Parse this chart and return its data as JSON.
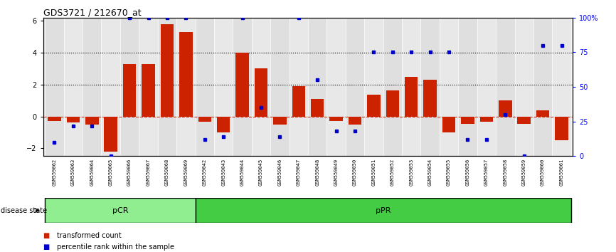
{
  "title": "GDS3721 / 212670_at",
  "samples": [
    "GSM559062",
    "GSM559063",
    "GSM559064",
    "GSM559065",
    "GSM559066",
    "GSM559067",
    "GSM559068",
    "GSM559069",
    "GSM559042",
    "GSM559043",
    "GSM559044",
    "GSM559045",
    "GSM559046",
    "GSM559047",
    "GSM559048",
    "GSM559049",
    "GSM559050",
    "GSM559051",
    "GSM559052",
    "GSM559053",
    "GSM559054",
    "GSM559055",
    "GSM559056",
    "GSM559057",
    "GSM559058",
    "GSM559059",
    "GSM559060",
    "GSM559061"
  ],
  "transformed_count": [
    -0.3,
    -0.4,
    -0.5,
    -2.2,
    3.3,
    3.3,
    5.8,
    5.3,
    -0.35,
    -1.0,
    4.0,
    3.0,
    -0.5,
    1.9,
    1.1,
    -0.3,
    -0.5,
    1.35,
    1.65,
    2.5,
    2.3,
    -1.0,
    -0.45,
    -0.35,
    1.0,
    -0.45,
    0.4,
    -1.5
  ],
  "percentile_rank": [
    10,
    22,
    22,
    0,
    100,
    100,
    100,
    100,
    12,
    14,
    100,
    35,
    14,
    100,
    55,
    18,
    18,
    75,
    75,
    75,
    75,
    75,
    12,
    12,
    30,
    0,
    80,
    80
  ],
  "pCR_count": 8,
  "pPR_count": 20,
  "ylim": [
    -2.5,
    6.2
  ],
  "y2lim": [
    0,
    100
  ],
  "yticks": [
    -2,
    0,
    2,
    4,
    6
  ],
  "y2ticks": [
    0,
    25,
    50,
    75,
    100
  ],
  "dotted_lines": [
    2.0,
    4.0
  ],
  "bar_color": "#cc2200",
  "dot_color": "#0000cc",
  "pCR_color": "#90ee90",
  "pPR_color": "#44cc44",
  "zero_line_color": "#cc2200",
  "background_color": "#ffffff",
  "legend_red": "transformed count",
  "legend_blue": "percentile rank within the sample",
  "disease_state_label": "disease state"
}
